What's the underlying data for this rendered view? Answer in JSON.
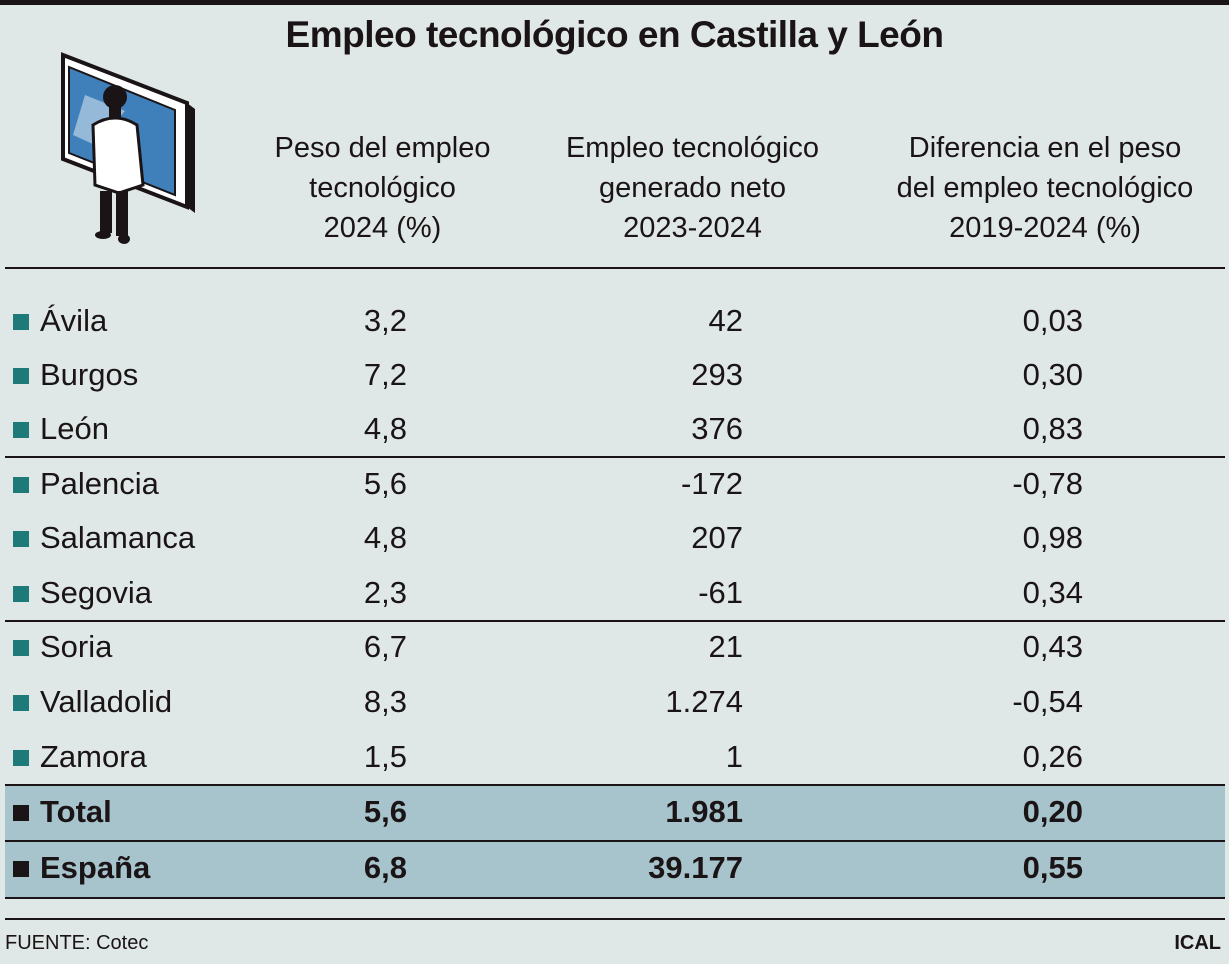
{
  "chart_data": {
    "type": "table",
    "title": "Empleo tecnológico en Castilla y León",
    "columns": [
      "Peso del empleo\ntecnológico\n2024 (%)",
      "Empleo tecnológico\ngenerado neto\n2023-2024",
      "Diferencia en el peso\ndel empleo tecnológico\n2019-2024 (%)"
    ],
    "rows": [
      {
        "name": "Ávila",
        "v": [
          "3,2",
          "42",
          "0,03"
        ]
      },
      {
        "name": "Burgos",
        "v": [
          "7,2",
          "293",
          "0,30"
        ]
      },
      {
        "name": "León",
        "v": [
          "4,8",
          "376",
          "0,83"
        ]
      },
      {
        "name": "Palencia",
        "v": [
          "5,6",
          "-172",
          "-0,78"
        ]
      },
      {
        "name": "Salamanca",
        "v": [
          "4,8",
          "207",
          "0,98"
        ]
      },
      {
        "name": "Segovia",
        "v": [
          "2,3",
          "-61",
          "0,34"
        ]
      },
      {
        "name": "Soria",
        "v": [
          "6,7",
          "21",
          "0,43"
        ]
      },
      {
        "name": "Valladolid",
        "v": [
          "8,3",
          "1.274",
          "-0,54"
        ]
      },
      {
        "name": "Zamora",
        "v": [
          "1,5",
          "1",
          "0,26"
        ]
      },
      {
        "name": "Total",
        "v": [
          "5,6",
          "1.981",
          "0,20"
        ]
      },
      {
        "name": "España",
        "v": [
          "6,8",
          "39.177",
          "0,55"
        ]
      }
    ]
  },
  "footer": {
    "source": "FUENTE: Cotec",
    "brand": "ICAL"
  },
  "colors": {
    "background": "#dfe8e6",
    "band": "#a7c4cc",
    "bullet": "#1e7a78",
    "screen": "#3f7fba"
  }
}
